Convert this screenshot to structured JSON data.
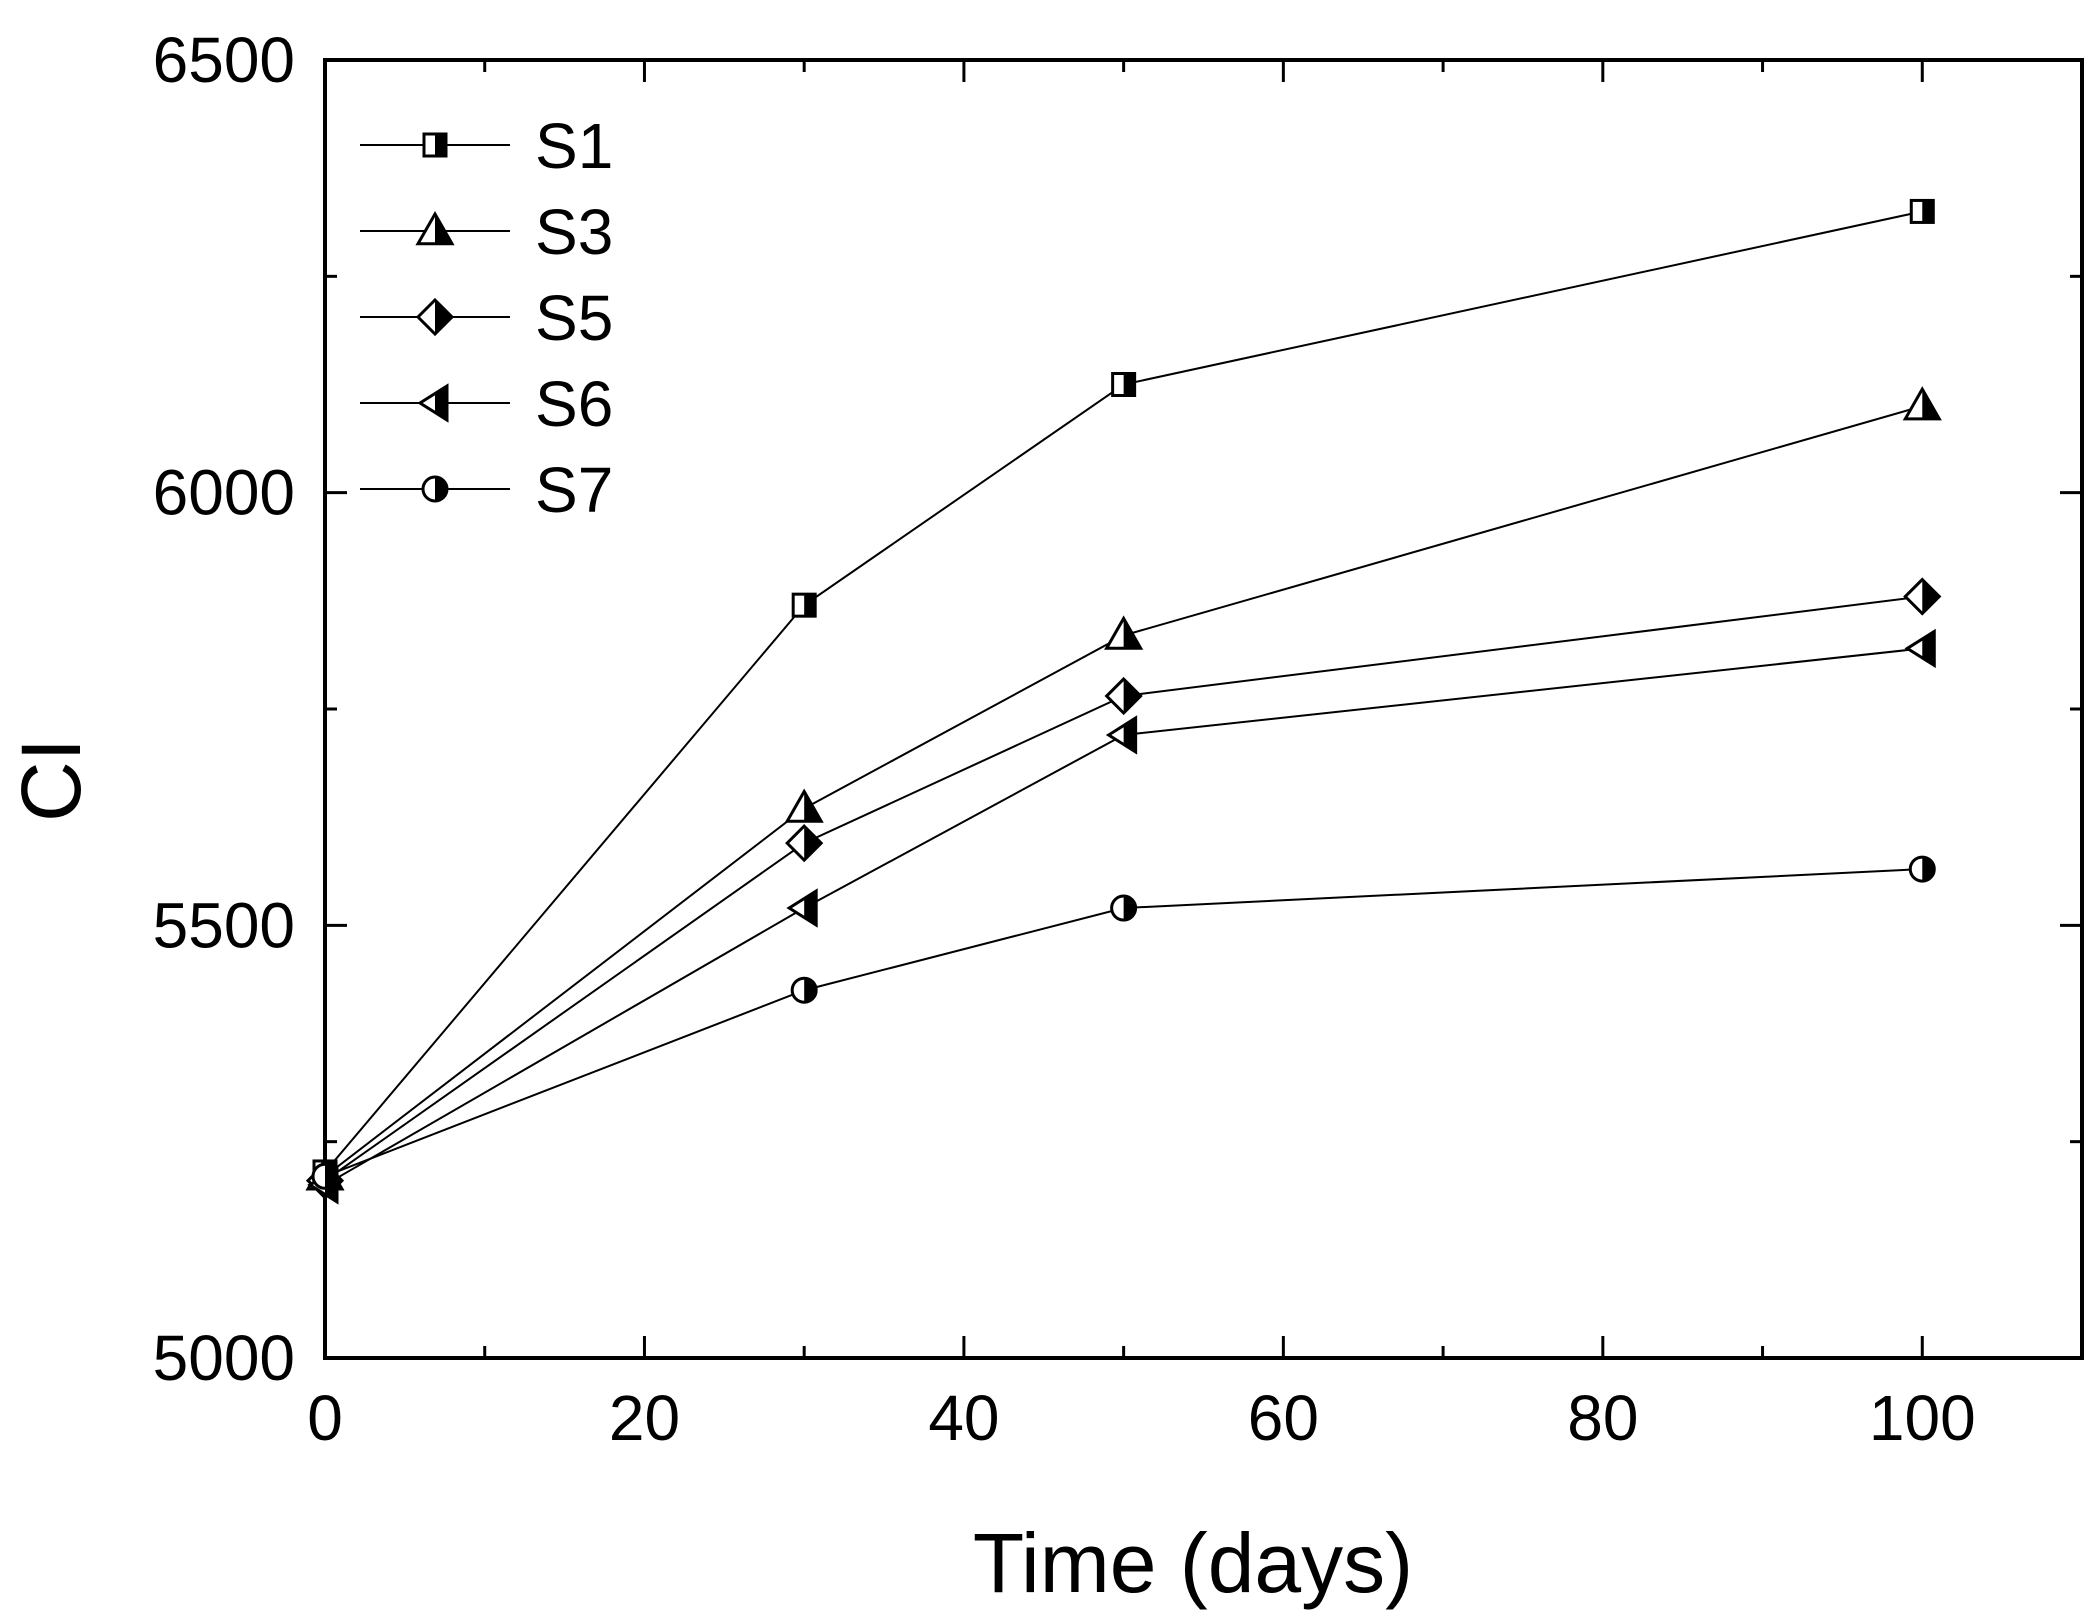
{
  "chart_data": {
    "type": "line",
    "title": "",
    "xlabel": "Time (days)",
    "ylabel": "CI",
    "xlim": [
      0,
      110
    ],
    "ylim": [
      5000,
      6500
    ],
    "x_ticks": [
      0,
      20,
      40,
      60,
      80,
      100
    ],
    "x_tick_labels": [
      "0",
      "20",
      "40",
      "60",
      "80",
      "100"
    ],
    "y_ticks": [
      5000,
      5500,
      6000,
      6500
    ],
    "y_tick_labels": [
      "5000",
      "5500",
      "6000",
      "6500"
    ],
    "legend_position": "top-left",
    "series": [
      {
        "name": "S1",
        "marker": "square",
        "x": [
          0,
          30,
          50,
          100
        ],
        "y": [
          5215,
          5870,
          6125,
          6325
        ]
      },
      {
        "name": "S3",
        "marker": "triangle",
        "x": [
          0,
          30,
          50,
          100
        ],
        "y": [
          5210,
          5635,
          5835,
          6100
        ]
      },
      {
        "name": "S5",
        "marker": "diamond",
        "x": [
          0,
          30,
          50,
          100
        ],
        "y": [
          5205,
          5595,
          5765,
          5880
        ]
      },
      {
        "name": "S6",
        "marker": "triangle-left",
        "x": [
          0,
          30,
          50,
          100
        ],
        "y": [
          5200,
          5520,
          5720,
          5820
        ]
      },
      {
        "name": "S7",
        "marker": "circle",
        "x": [
          0,
          30,
          50,
          100
        ],
        "y": [
          5210,
          5425,
          5520,
          5565
        ]
      }
    ]
  }
}
